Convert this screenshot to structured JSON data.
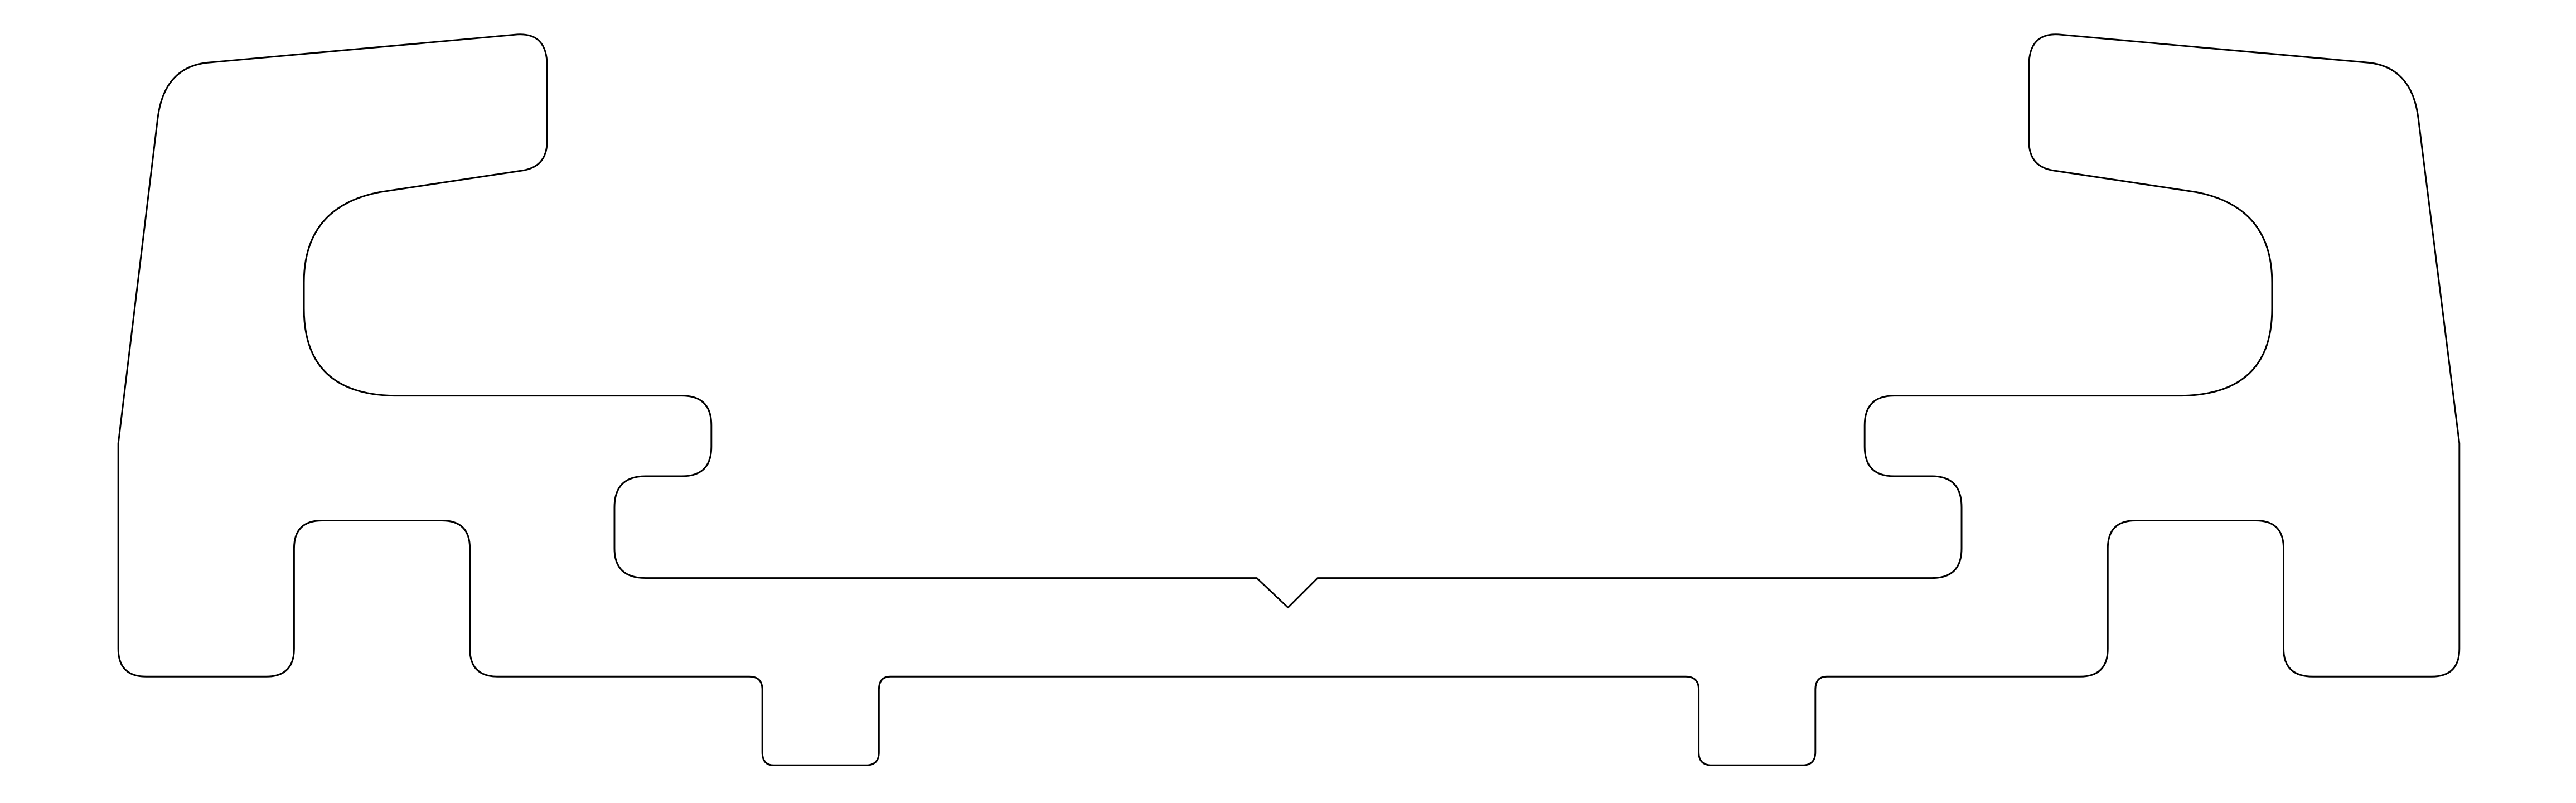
{
  "drawing": {
    "line_color": "#000000",
    "background_color": "#ffffff",
    "fill": "none"
  }
}
